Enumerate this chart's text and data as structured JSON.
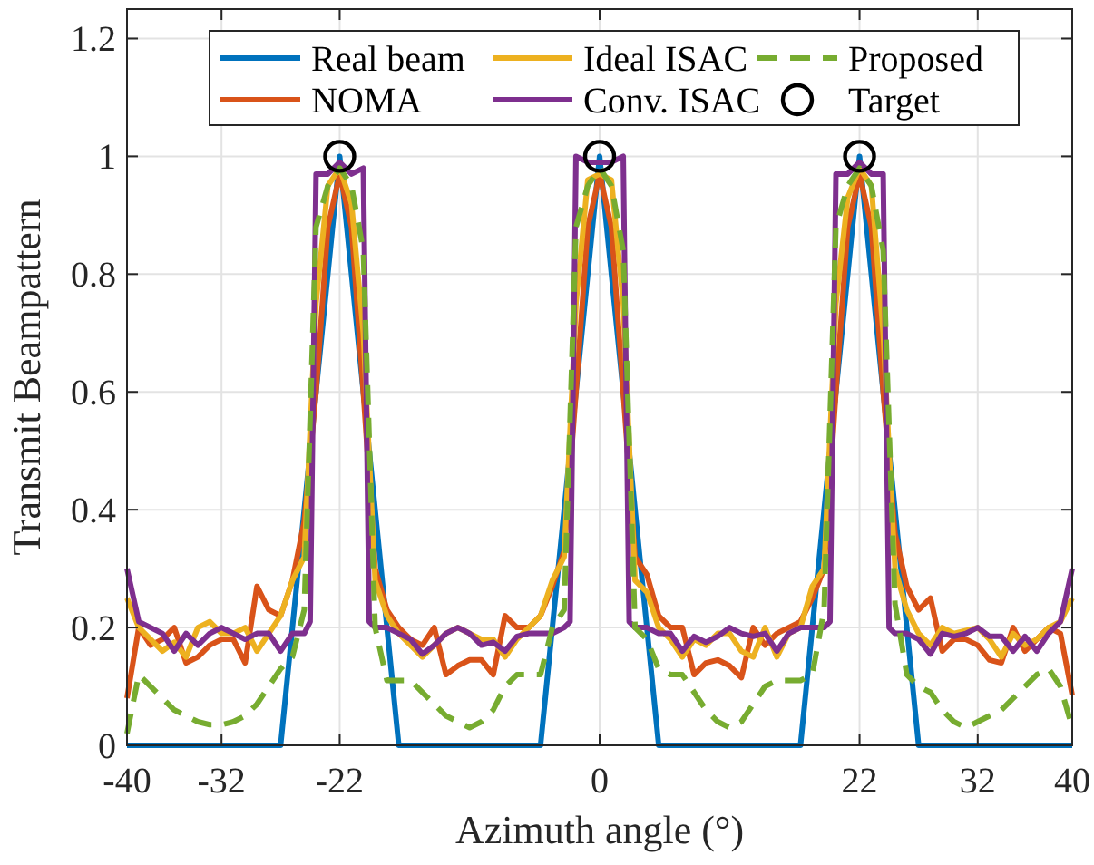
{
  "chart_data": {
    "type": "line",
    "xlabel": "Azimuth angle (°)",
    "ylabel": "Transmit Beampattern",
    "xlim": [
      -40,
      40
    ],
    "xticks": [
      -40,
      -32,
      -22,
      0,
      22,
      32,
      40
    ],
    "ylim": [
      0,
      1.25
    ],
    "yticks": [
      0,
      0.2,
      0.4,
      0.6,
      0.8,
      1,
      1.2
    ],
    "grid": true,
    "legend": "top",
    "series": [
      {
        "name": "Real beam",
        "color": "#0072bd",
        "x": [
          -40,
          -27,
          -22,
          -17,
          -5,
          0,
          5,
          17,
          22,
          27,
          40
        ],
        "values": [
          0,
          0,
          1,
          0,
          0,
          1,
          0,
          0,
          1,
          0,
          0
        ]
      },
      {
        "name": "NOMA",
        "color": "#d95319",
        "x": [
          -40,
          -39,
          -38,
          -37,
          -36,
          -35,
          -34,
          -33,
          -32,
          -31,
          -30,
          -29,
          -28,
          -27,
          -26,
          -25,
          -24,
          -23,
          -22,
          -21,
          -20,
          -19,
          -18,
          -17,
          -16,
          -15,
          -14,
          -13,
          -12,
          -11,
          -10,
          -9,
          -8,
          -7,
          -6,
          -5,
          -4,
          -3,
          -2,
          -1,
          0,
          1,
          2,
          3,
          4,
          5,
          6,
          7,
          8,
          9,
          10,
          11,
          12,
          13,
          14,
          15,
          16,
          17,
          18,
          19,
          20,
          21,
          22,
          23,
          24,
          25,
          26,
          27,
          28,
          29,
          30,
          31,
          32,
          33,
          34,
          35,
          36,
          37,
          38,
          39,
          40
        ],
        "values": [
          0.08,
          0.2,
          0.17,
          0.18,
          0.2,
          0.14,
          0.15,
          0.17,
          0.18,
          0.18,
          0.14,
          0.27,
          0.23,
          0.22,
          0.28,
          0.38,
          0.6,
          0.88,
          0.97,
          0.88,
          0.6,
          0.3,
          0.23,
          0.2,
          0.18,
          0.17,
          0.2,
          0.12,
          0.135,
          0.145,
          0.145,
          0.12,
          0.22,
          0.2,
          0.2,
          0.22,
          0.27,
          0.33,
          0.6,
          0.88,
          0.97,
          0.88,
          0.6,
          0.32,
          0.29,
          0.22,
          0.2,
          0.2,
          0.12,
          0.14,
          0.145,
          0.135,
          0.115,
          0.2,
          0.17,
          0.19,
          0.2,
          0.21,
          0.25,
          0.3,
          0.6,
          0.88,
          0.97,
          0.88,
          0.6,
          0.36,
          0.27,
          0.23,
          0.25,
          0.16,
          0.18,
          0.18,
          0.17,
          0.145,
          0.14,
          0.2,
          0.16,
          0.18,
          0.2,
          0.19,
          0.085
        ]
      },
      {
        "name": "Ideal ISAC",
        "color": "#edb120",
        "x": [
          -40,
          -39,
          -38,
          -37,
          -36,
          -35,
          -34,
          -33,
          -32,
          -31,
          -30,
          -29,
          -28,
          -27,
          -26,
          -25,
          -24,
          -23,
          -22,
          -21,
          -20,
          -19,
          -18,
          -17,
          -16,
          -15,
          -14,
          -13,
          -12,
          -11,
          -10,
          -9,
          -8,
          -7,
          -6,
          -5,
          -4,
          -3,
          -2,
          -1,
          0,
          1,
          2,
          3,
          4,
          5,
          6,
          7,
          8,
          9,
          10,
          11,
          12,
          13,
          14,
          15,
          16,
          17,
          18,
          19,
          20,
          21,
          22,
          23,
          24,
          25,
          26,
          27,
          28,
          29,
          30,
          31,
          32,
          33,
          34,
          35,
          36,
          37,
          38,
          39,
          40
        ],
        "values": [
          0.25,
          0.2,
          0.18,
          0.16,
          0.175,
          0.15,
          0.2,
          0.21,
          0.19,
          0.19,
          0.2,
          0.16,
          0.19,
          0.22,
          0.28,
          0.32,
          0.75,
          0.95,
          0.98,
          0.92,
          0.7,
          0.28,
          0.22,
          0.19,
          0.17,
          0.15,
          0.17,
          0.19,
          0.2,
          0.19,
          0.18,
          0.18,
          0.15,
          0.18,
          0.2,
          0.22,
          0.28,
          0.32,
          0.75,
          0.96,
          0.97,
          0.96,
          0.75,
          0.28,
          0.26,
          0.2,
          0.18,
          0.15,
          0.18,
          0.17,
          0.19,
          0.19,
          0.16,
          0.15,
          0.2,
          0.15,
          0.19,
          0.2,
          0.27,
          0.3,
          0.75,
          0.93,
          0.98,
          0.95,
          0.7,
          0.3,
          0.23,
          0.19,
          0.17,
          0.2,
          0.19,
          0.195,
          0.2,
          0.18,
          0.15,
          0.19,
          0.17,
          0.18,
          0.2,
          0.21,
          0.25
        ]
      },
      {
        "name": "Conv. ISAC",
        "color": "#7e2f8e",
        "x": [
          -40,
          -39,
          -38,
          -37,
          -36,
          -35,
          -34,
          -33,
          -32,
          -31,
          -30,
          -29,
          -28,
          -27,
          -26,
          -25,
          -24.5,
          -24,
          -23,
          -22,
          -21,
          -20,
          -19.5,
          -19,
          -18,
          -17,
          -16,
          -15,
          -14,
          -13,
          -12,
          -11,
          -10,
          -9,
          -8,
          -7,
          -6,
          -5,
          -4,
          -3,
          -2.5,
          -2,
          -1,
          0,
          1,
          2,
          2.5,
          3,
          4,
          5,
          6,
          7,
          8,
          9,
          10,
          11,
          12,
          13,
          14,
          15,
          16,
          17,
          18,
          19,
          19.5,
          20,
          21,
          22,
          23,
          24,
          24.5,
          25,
          26,
          27,
          28,
          29,
          30,
          31,
          32,
          33,
          34,
          35,
          36,
          37,
          38,
          39,
          40
        ],
        "values": [
          0.3,
          0.21,
          0.2,
          0.19,
          0.16,
          0.19,
          0.17,
          0.19,
          0.2,
          0.19,
          0.18,
          0.19,
          0.19,
          0.16,
          0.19,
          0.19,
          0.21,
          0.97,
          0.97,
          0.99,
          0.97,
          0.98,
          0.21,
          0.2,
          0.2,
          0.19,
          0.18,
          0.155,
          0.17,
          0.19,
          0.2,
          0.19,
          0.17,
          0.175,
          0.16,
          0.185,
          0.19,
          0.19,
          0.19,
          0.2,
          0.21,
          1.0,
          0.99,
          0.99,
          0.99,
          1.0,
          0.21,
          0.2,
          0.2,
          0.19,
          0.19,
          0.16,
          0.185,
          0.175,
          0.185,
          0.2,
          0.19,
          0.185,
          0.19,
          0.16,
          0.19,
          0.2,
          0.2,
          0.2,
          0.21,
          0.97,
          0.97,
          0.99,
          0.97,
          0.97,
          0.2,
          0.19,
          0.19,
          0.18,
          0.155,
          0.19,
          0.185,
          0.19,
          0.2,
          0.185,
          0.185,
          0.16,
          0.185,
          0.16,
          0.19,
          0.21,
          0.3
        ]
      },
      {
        "name": "Proposed",
        "color": "#77ac30",
        "line_style": "dashed",
        "x": [
          -40,
          -39,
          -38,
          -37,
          -36,
          -35,
          -34,
          -33,
          -32,
          -31,
          -30,
          -29,
          -28,
          -27,
          -26,
          -25,
          -24,
          -23,
          -22,
          -21,
          -20,
          -19,
          -18,
          -17,
          -16,
          -15,
          -14,
          -13,
          -12,
          -11,
          -10,
          -9,
          -8,
          -7,
          -6,
          -5,
          -4,
          -3,
          -2,
          -1,
          0,
          1,
          2,
          3,
          4,
          5,
          6,
          7,
          8,
          9,
          10,
          11,
          12,
          13,
          14,
          15,
          16,
          17,
          18,
          19,
          20,
          21,
          22,
          23,
          24,
          25,
          26,
          27,
          28,
          29,
          30,
          31,
          32,
          33,
          34,
          35,
          36,
          37,
          38,
          39,
          40
        ],
        "values": [
          0.02,
          0.12,
          0.1,
          0.08,
          0.06,
          0.05,
          0.04,
          0.035,
          0.035,
          0.04,
          0.05,
          0.07,
          0.1,
          0.13,
          0.15,
          0.23,
          0.88,
          0.95,
          0.98,
          0.95,
          0.84,
          0.2,
          0.11,
          0.11,
          0.11,
          0.09,
          0.07,
          0.05,
          0.04,
          0.03,
          0.04,
          0.06,
          0.1,
          0.12,
          0.12,
          0.12,
          0.2,
          0.23,
          0.88,
          0.95,
          0.98,
          0.95,
          0.84,
          0.2,
          0.18,
          0.13,
          0.12,
          0.12,
          0.09,
          0.06,
          0.04,
          0.03,
          0.04,
          0.07,
          0.1,
          0.11,
          0.11,
          0.11,
          0.12,
          0.23,
          0.88,
          0.95,
          0.98,
          0.95,
          0.84,
          0.24,
          0.12,
          0.1,
          0.09,
          0.06,
          0.04,
          0.03,
          0.04,
          0.05,
          0.06,
          0.08,
          0.1,
          0.12,
          0.13,
          0.1,
          0.03
        ]
      },
      {
        "name": "Target",
        "type": "scatter",
        "color": "#000000",
        "marker": "circle",
        "x": [
          -22,
          0,
          22
        ],
        "values": [
          1,
          1,
          1
        ]
      }
    ]
  }
}
